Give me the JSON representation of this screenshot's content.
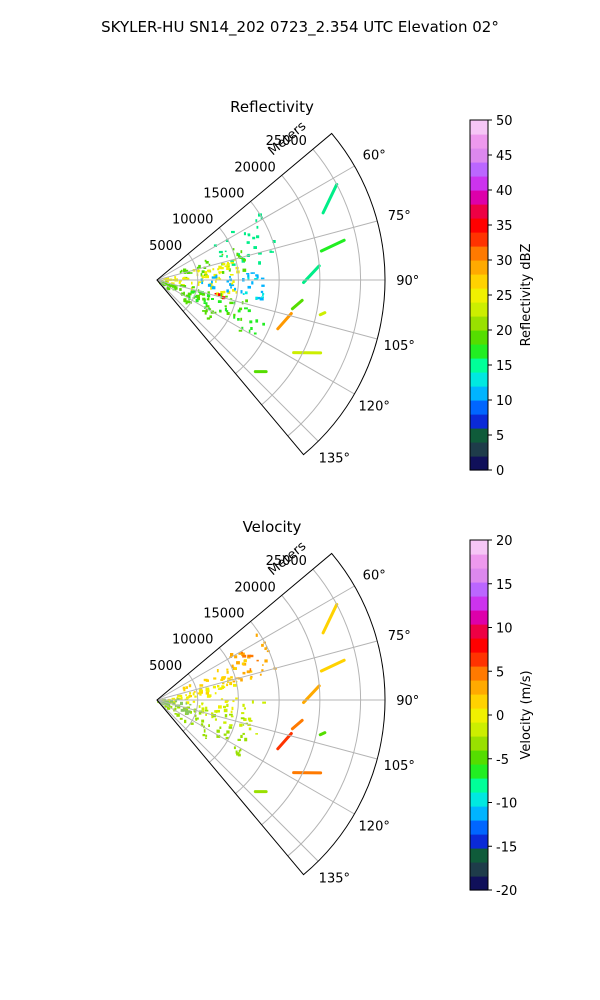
{
  "figure": {
    "title": "SKYLER-HU  SN14_202  0723_2.354 UTC Elevation 02°"
  },
  "chart_data": [
    {
      "type": "heatmap",
      "projection": "polar-sector",
      "title": "Reflectivity",
      "range_label": "Meters",
      "range_ticks": [
        "5000",
        "10000",
        "15000",
        "20000",
        "25000"
      ],
      "range_tick_values": [
        5000,
        10000,
        15000,
        20000,
        25000
      ],
      "range_max": 28000,
      "azimuth_range_deg": [
        50,
        140
      ],
      "azimuth_ticks": [
        "60°",
        "75°",
        "90°",
        "105°",
        "120°",
        "135°"
      ],
      "azimuth_tick_values": [
        60,
        75,
        90,
        105,
        120,
        135
      ],
      "colorbar": {
        "label": "Reflectivity dBZ",
        "min": 0,
        "max": 50,
        "ticks": [
          "0",
          "5",
          "10",
          "15",
          "20",
          "25",
          "30",
          "35",
          "40",
          "45",
          "50"
        ],
        "tick_values": [
          0,
          5,
          10,
          15,
          20,
          25,
          30,
          35,
          40,
          45,
          50
        ],
        "colors": [
          "#10105a",
          "#1e3c4a",
          "#0f5b3a",
          "#0a2ad8",
          "#0066ff",
          "#00b4ff",
          "#00e8e0",
          "#00ff99",
          "#22ee22",
          "#55dd00",
          "#99e000",
          "#ccee00",
          "#f0f000",
          "#ffd200",
          "#ffaa00",
          "#ff7a00",
          "#ff3300",
          "#ff0000",
          "#ee0044",
          "#dd00aa",
          "#cc33ee",
          "#bb66ff",
          "#dd88ee",
          "#ee99ee",
          "#f6c6f6"
        ]
      },
      "echo_clusters": [
        {
          "az": [
            55,
            80
          ],
          "r": [
            8000,
            15000
          ],
          "value": 16,
          "color": "#00ee88",
          "density": 0.45
        },
        {
          "az": [
            66,
            84
          ],
          "r": [
            3000,
            11000
          ],
          "value": 22,
          "color": "#55dd00",
          "density": 0.55
        },
        {
          "az": [
            72,
            102
          ],
          "r": [
            0,
            10000
          ],
          "value": 26,
          "color": "#f0f000",
          "density": 0.6
        },
        {
          "az": [
            84,
            100
          ],
          "r": [
            5000,
            13000
          ],
          "value": 10,
          "color": "#00b4ff",
          "density": 0.5
        },
        {
          "az": [
            100,
            128
          ],
          "r": [
            0,
            12000
          ],
          "value": 20,
          "color": "#55dd00",
          "density": 0.5
        },
        {
          "az": [
            104,
            120
          ],
          "r": [
            4000,
            14000
          ],
          "value": 16,
          "color": "#22ee22",
          "density": 0.45
        },
        {
          "az": [
            101,
            108
          ],
          "r": [
            6500,
            8500
          ],
          "value": 36,
          "color": "#ff0000",
          "density": 0.7
        },
        {
          "az": [
            86,
            100
          ],
          "r": [
            10000,
            13500
          ],
          "value": 18,
          "color": "#00e8e0",
          "density": 0.35
        }
      ],
      "line_echoes": [
        {
          "from": [
            80,
            20500
          ],
          "to": [
            78,
            23500
          ],
          "value": 18,
          "color": "#22ee22"
        },
        {
          "from": [
            91,
            18000
          ],
          "to": [
            85,
            20000
          ],
          "value": 16,
          "color": "#00ee88"
        },
        {
          "from": [
            102,
            17000
          ],
          "to": [
            98,
            18000
          ],
          "value": 20,
          "color": "#55dd00"
        },
        {
          "from": [
            112,
            16000
          ],
          "to": [
            104,
            17000
          ],
          "value": 28,
          "color": "#ff9900"
        },
        {
          "from": [
            118,
            19000
          ],
          "to": [
            114,
            22000
          ],
          "value": 22,
          "color": "#ccee00"
        },
        {
          "from": [
            133,
            16500
          ],
          "to": [
            130,
            17500
          ],
          "value": 18,
          "color": "#55dd00"
        },
        {
          "from": [
            62,
            25000
          ],
          "to": [
            68,
            22000
          ],
          "value": 16,
          "color": "#00ee88"
        },
        {
          "from": [
            102,
            20500
          ],
          "to": [
            101,
            21000
          ],
          "value": 24,
          "color": "#ccee00"
        }
      ]
    },
    {
      "type": "heatmap",
      "projection": "polar-sector",
      "title": "Velocity",
      "range_label": "Meters",
      "range_ticks": [
        "5000",
        "10000",
        "15000",
        "20000",
        "25000"
      ],
      "range_tick_values": [
        5000,
        10000,
        15000,
        20000,
        25000
      ],
      "range_max": 28000,
      "azimuth_range_deg": [
        50,
        140
      ],
      "azimuth_ticks": [
        "60°",
        "75°",
        "90°",
        "105°",
        "120°",
        "135°"
      ],
      "azimuth_tick_values": [
        60,
        75,
        90,
        105,
        120,
        135
      ],
      "colorbar": {
        "label": "Velocity (m/s)",
        "min": -20,
        "max": 20,
        "ticks": [
          "-20",
          "-15",
          "-10",
          "-5",
          "0",
          "5",
          "10",
          "15",
          "20"
        ],
        "tick_values": [
          -20,
          -15,
          -10,
          -5,
          0,
          5,
          10,
          15,
          20
        ],
        "colors": [
          "#10105a",
          "#1e3c4a",
          "#0f5b3a",
          "#0a2ad8",
          "#0066ff",
          "#00b4ff",
          "#00e8e0",
          "#00ff99",
          "#22ee22",
          "#55dd00",
          "#99e000",
          "#ccee00",
          "#f0f000",
          "#ffd200",
          "#ffaa00",
          "#ff7a00",
          "#ff3300",
          "#ff0000",
          "#ee0044",
          "#dd00aa",
          "#cc33ee",
          "#bb66ff",
          "#dd88ee",
          "#ee99ee",
          "#f6c6f6"
        ]
      },
      "echo_clusters": [
        {
          "az": [
            56,
            78
          ],
          "r": [
            9000,
            15000
          ],
          "value": 4,
          "color": "#ffaa00",
          "density": 0.5
        },
        {
          "az": [
            62,
            82
          ],
          "r": [
            3000,
            12000
          ],
          "value": 2,
          "color": "#ffd200",
          "density": 0.55
        },
        {
          "az": [
            75,
            100
          ],
          "r": [
            0,
            10000
          ],
          "value": 0,
          "color": "#f0f000",
          "density": 0.6
        },
        {
          "az": [
            90,
            110
          ],
          "r": [
            5000,
            13000
          ],
          "value": -1,
          "color": "#ccee00",
          "density": 0.45
        },
        {
          "az": [
            100,
            128
          ],
          "r": [
            0,
            12000
          ],
          "value": -4,
          "color": "#99e000",
          "density": 0.5
        },
        {
          "az": [
            80,
            115
          ],
          "r": [
            0,
            4000
          ],
          "value": -5,
          "color": "#88c860",
          "density": 0.6
        },
        {
          "az": [
            60,
            72
          ],
          "r": [
            11000,
            13500
          ],
          "value": 6,
          "color": "#ff7a00",
          "density": 0.3
        }
      ],
      "line_echoes": [
        {
          "from": [
            80,
            20500
          ],
          "to": [
            78,
            23500
          ],
          "value": 2,
          "color": "#ffd200"
        },
        {
          "from": [
            91,
            18000
          ],
          "to": [
            85,
            20000
          ],
          "value": 4,
          "color": "#ffaa00"
        },
        {
          "from": [
            102,
            17000
          ],
          "to": [
            98,
            18000
          ],
          "value": 5,
          "color": "#ff7a00"
        },
        {
          "from": [
            112,
            16000
          ],
          "to": [
            104,
            17000
          ],
          "value": 8,
          "color": "#ff3300"
        },
        {
          "from": [
            118,
            19000
          ],
          "to": [
            114,
            22000
          ],
          "value": 6,
          "color": "#ff7a00"
        },
        {
          "from": [
            133,
            16500
          ],
          "to": [
            130,
            17500
          ],
          "value": -3,
          "color": "#99e000"
        },
        {
          "from": [
            62,
            25000
          ],
          "to": [
            68,
            22000
          ],
          "value": 2,
          "color": "#ffd200"
        },
        {
          "from": [
            102,
            20500
          ],
          "to": [
            101,
            21000
          ],
          "value": -5,
          "color": "#55dd00"
        }
      ]
    }
  ]
}
